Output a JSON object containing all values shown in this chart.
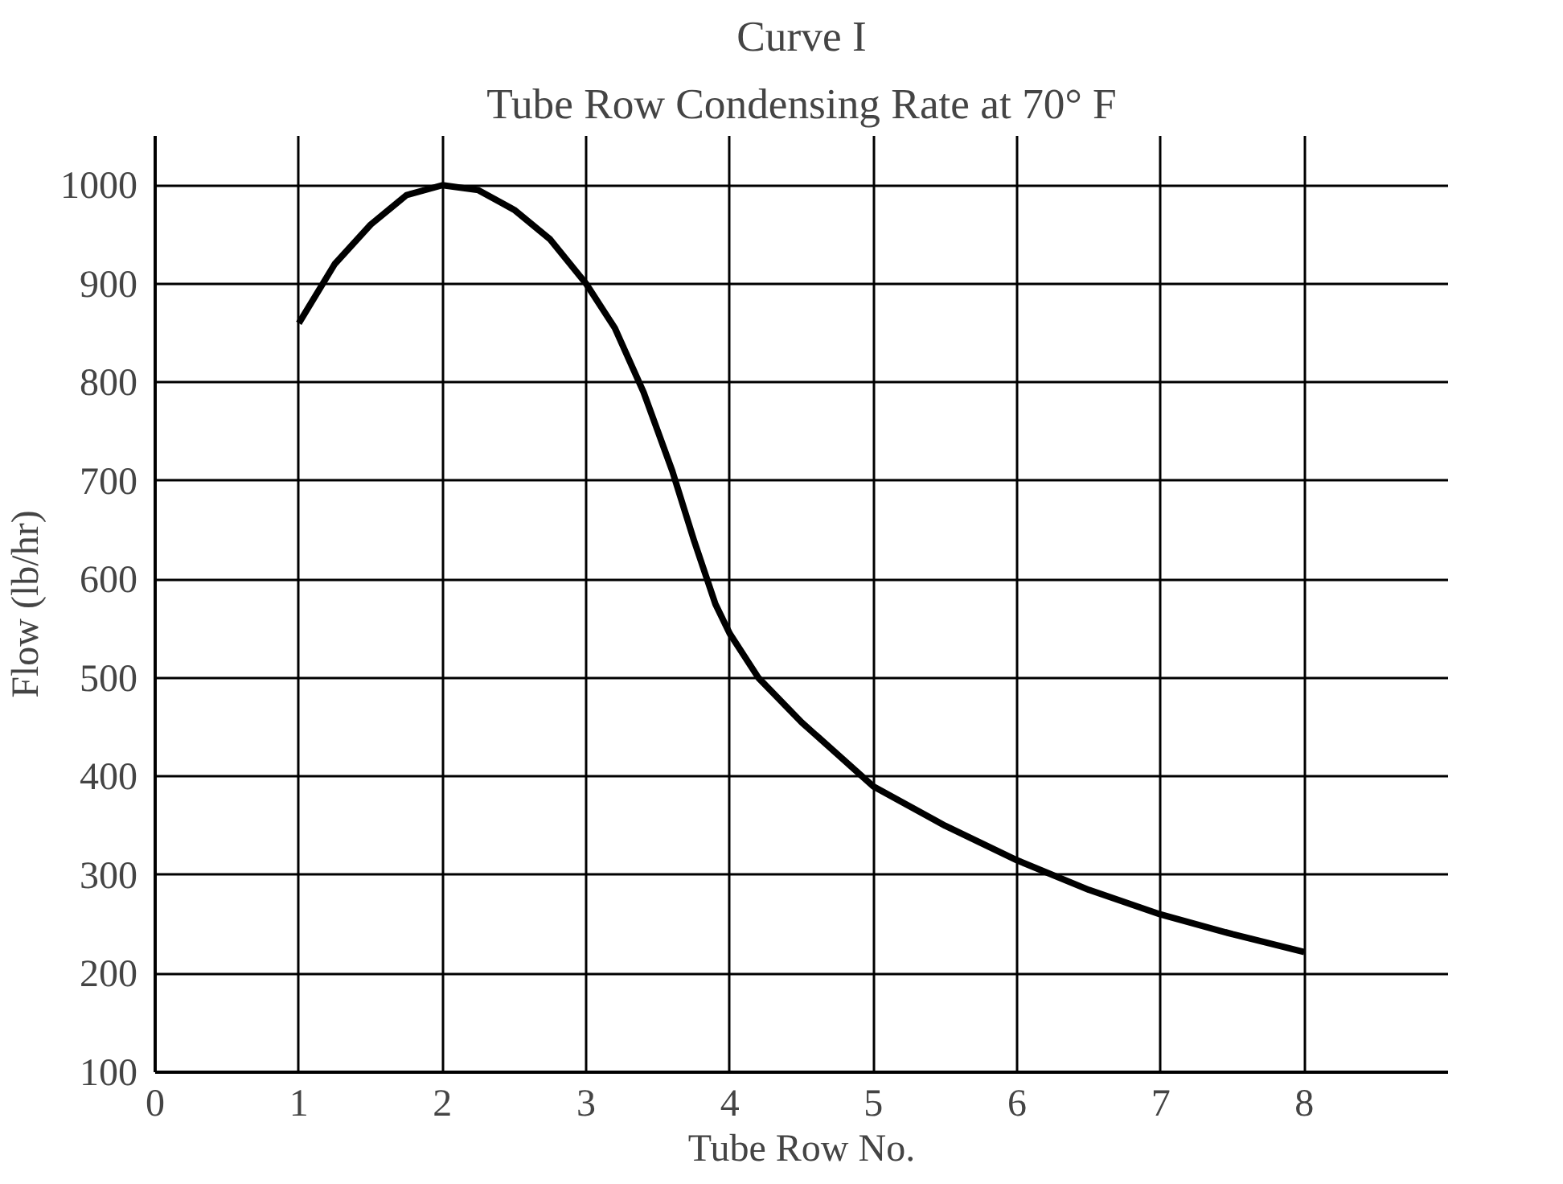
{
  "chart_data": {
    "type": "line",
    "title": "Curve I",
    "subtitle": "Tube Row Condensing Rate at 70° F",
    "xlabel": "Tube Row No.",
    "ylabel": "Flow (lb/hr)",
    "x": [
      1,
      1.25,
      1.5,
      1.75,
      2,
      2.25,
      2.5,
      2.75,
      3,
      3.2,
      3.4,
      3.6,
      3.75,
      3.9,
      4,
      4.2,
      4.5,
      5,
      5.5,
      6,
      6.5,
      7,
      7.5,
      8
    ],
    "series": [
      {
        "color": "#000000",
        "values": [
          860,
          920,
          960,
          990,
          1000,
          995,
          975,
          945,
          900,
          855,
          790,
          710,
          640,
          575,
          545,
          500,
          455,
          390,
          350,
          315,
          285,
          260,
          240,
          222
        ]
      }
    ],
    "xlim": [
      0,
      9
    ],
    "ylim": [
      100,
      1050
    ],
    "xticks": [
      0,
      1,
      2,
      3,
      4,
      5,
      6,
      7,
      8
    ],
    "yticks": [
      100,
      200,
      300,
      400,
      500,
      600,
      700,
      800,
      900,
      1000
    ],
    "grid": true,
    "marker": "none",
    "line_style": "solid"
  }
}
